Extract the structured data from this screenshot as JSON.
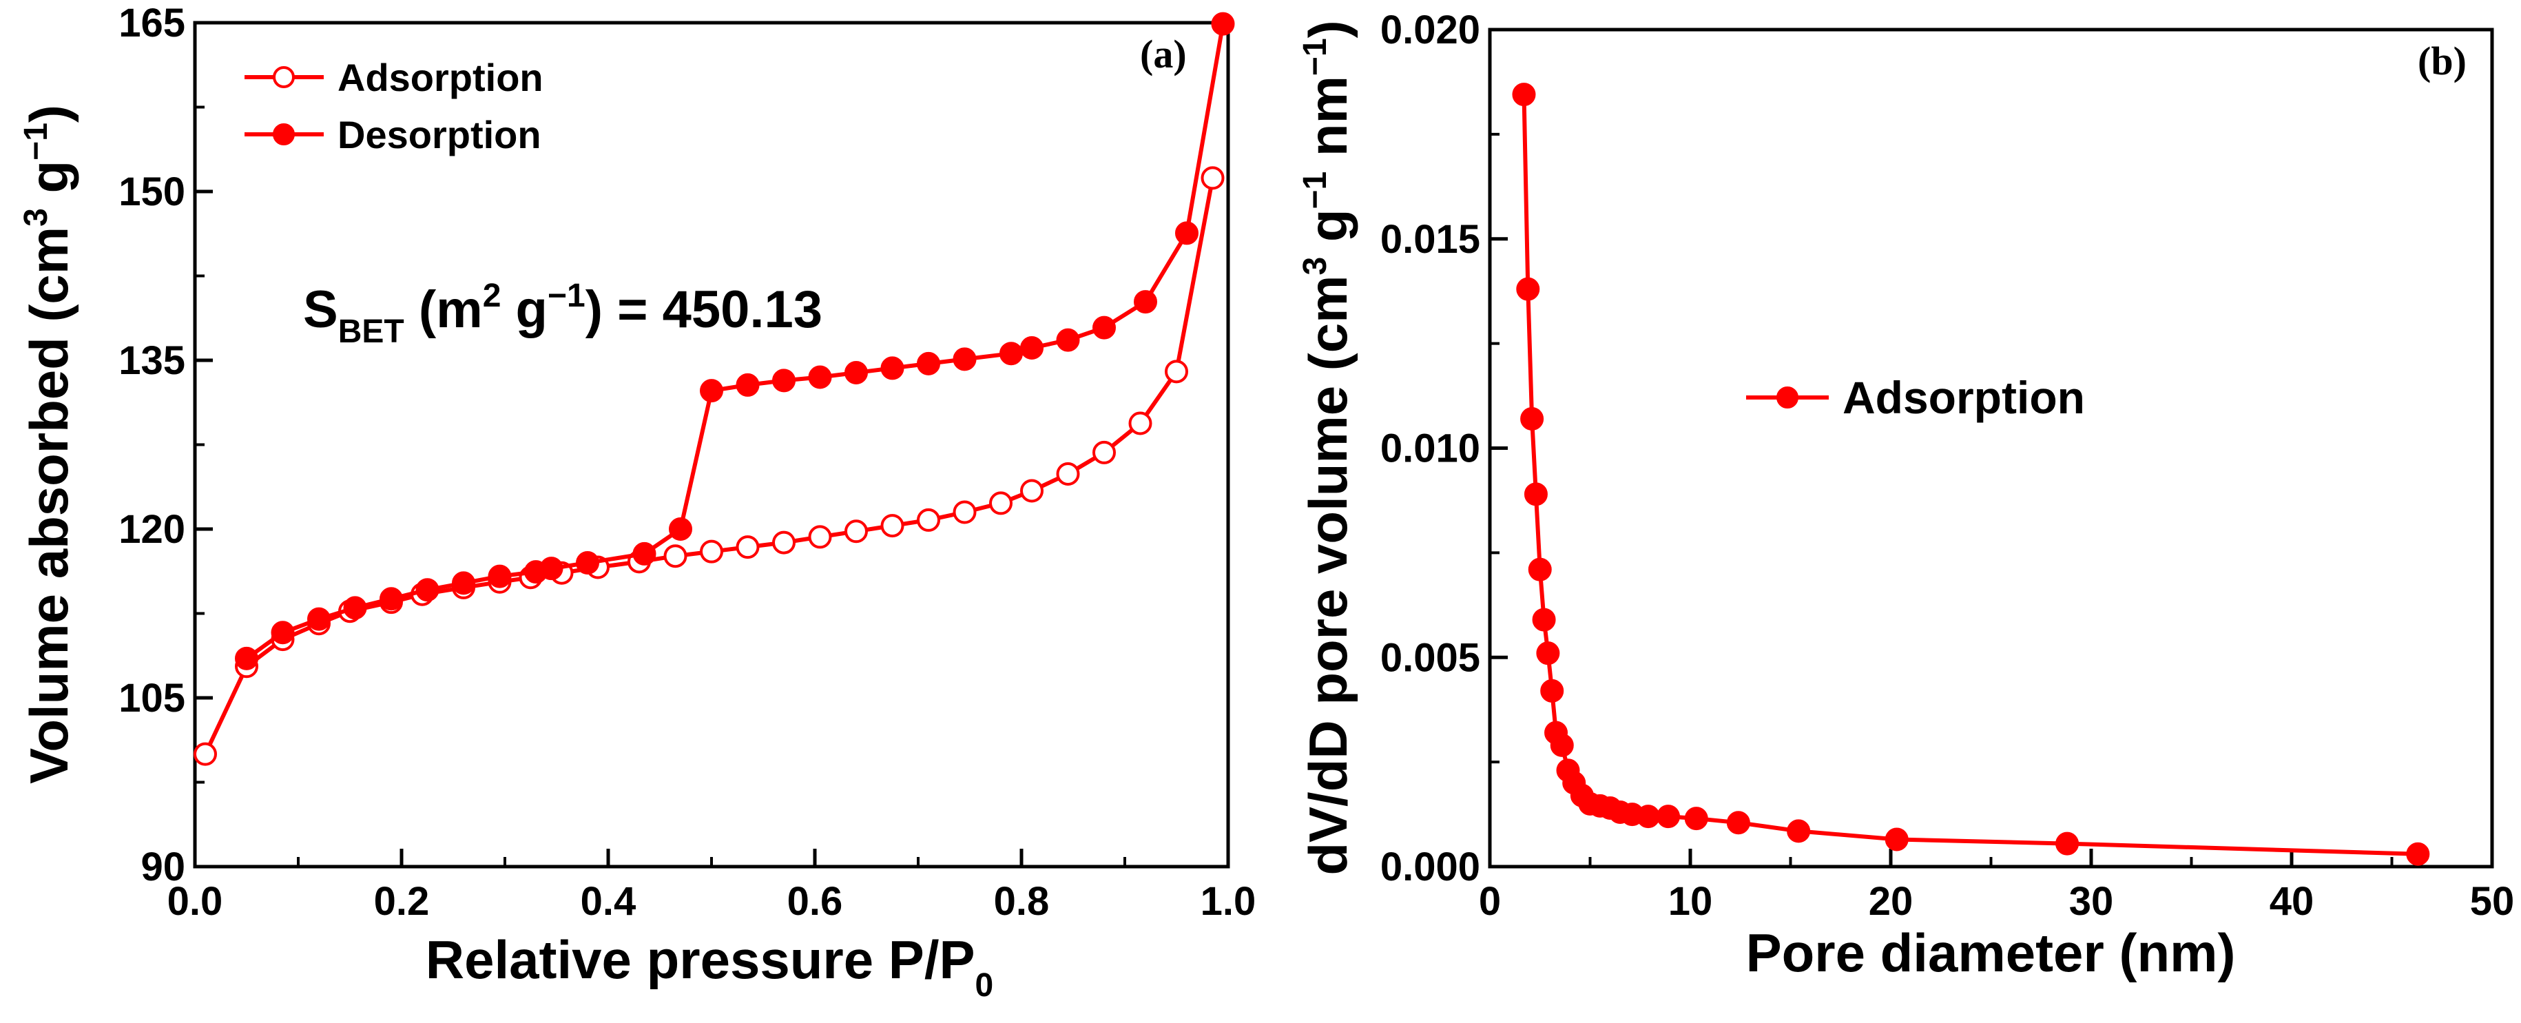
{
  "colors": {
    "series": "#ff0000",
    "axis": "#000000",
    "background": "#ffffff"
  },
  "chart_data": [
    {
      "id": "a",
      "type": "scatter",
      "panel_label": "(a)",
      "xlabel": "Relative pressure P/P",
      "xlabel_sub": "0",
      "ylabel": "Volume absorbed (cm",
      "ylabel_sup1": "3",
      "ylabel_mid": " g",
      "ylabel_sup2": "−1",
      "ylabel_end": ")",
      "xlim": [
        0.0,
        1.0
      ],
      "ylim": [
        90,
        165
      ],
      "xticks": [
        0.0,
        0.2,
        0.4,
        0.6,
        0.8,
        1.0
      ],
      "xtick_labels": [
        "0.0",
        "0.2",
        "0.4",
        "0.6",
        "0.8",
        "1.0"
      ],
      "yticks": [
        90,
        105,
        120,
        135,
        150,
        165
      ],
      "ytick_labels": [
        "90",
        "105",
        "120",
        "135",
        "150",
        "165"
      ],
      "legend_position": "top-left",
      "annotation": {
        "main": "S",
        "sub": "BET",
        "open": " (m",
        "sup1": "2",
        "mid": " g",
        "sup2": "−1",
        "value": ") = 450.13"
      },
      "series": [
        {
          "name": "Adsorption",
          "marker": "open-circle",
          "x": [
            0.01,
            0.05,
            0.085,
            0.12,
            0.15,
            0.19,
            0.22,
            0.26,
            0.295,
            0.325,
            0.355,
            0.39,
            0.43,
            0.465,
            0.5,
            0.535,
            0.57,
            0.605,
            0.64,
            0.675,
            0.71,
            0.745,
            0.78,
            0.81,
            0.845,
            0.88,
            0.915,
            0.95,
            0.985
          ],
          "y": [
            100,
            107.8,
            110.2,
            111.6,
            112.7,
            113.5,
            114.2,
            114.8,
            115.3,
            115.7,
            116.1,
            116.6,
            117.1,
            117.6,
            118.0,
            118.4,
            118.8,
            119.3,
            119.8,
            120.3,
            120.8,
            121.5,
            122.3,
            123.4,
            124.9,
            126.8,
            129.4,
            134.0,
            151.2
          ]
        },
        {
          "name": "Desorption",
          "marker": "filled-circle",
          "x": [
            0.995,
            0.96,
            0.92,
            0.88,
            0.845,
            0.81,
            0.79,
            0.745,
            0.71,
            0.675,
            0.64,
            0.605,
            0.57,
            0.535,
            0.5,
            0.47,
            0.435,
            0.38,
            0.345,
            0.33,
            0.295,
            0.26,
            0.225,
            0.19,
            0.155,
            0.12,
            0.085,
            0.05
          ],
          "y": [
            164.9,
            146.3,
            140.2,
            137.9,
            136.8,
            136.1,
            135.6,
            135.1,
            134.7,
            134.3,
            133.9,
            133.5,
            133.2,
            132.8,
            132.3,
            120.0,
            117.8,
            117.0,
            116.5,
            116.2,
            115.8,
            115.2,
            114.6,
            113.8,
            113.0,
            112.0,
            110.8,
            108.5
          ]
        }
      ]
    },
    {
      "id": "b",
      "type": "line",
      "panel_label": "(b)",
      "xlabel": "Pore diameter (nm)",
      "ylabel": "dV/dD pore volume (cm",
      "ylabel_sup1": "3",
      "ylabel_mid1": " g",
      "ylabel_sup2": "−1",
      "ylabel_mid2": " nm",
      "ylabel_sup3": "−1",
      "ylabel_end": ")",
      "xlim": [
        0,
        50
      ],
      "ylim": [
        0.0,
        0.02
      ],
      "xticks": [
        0,
        10,
        20,
        30,
        40,
        50
      ],
      "xtick_labels": [
        "0",
        "10",
        "20",
        "30",
        "40",
        "50"
      ],
      "yticks": [
        0.0,
        0.005,
        0.01,
        0.015,
        0.02
      ],
      "ytick_labels": [
        "0.000",
        "0.005",
        "0.010",
        "0.015",
        "0.020"
      ],
      "legend_position": "center",
      "series": [
        {
          "name": "Adsorption",
          "marker": "filled-circle",
          "x": [
            1.7,
            1.9,
            2.1,
            2.3,
            2.5,
            2.7,
            2.9,
            3.1,
            3.3,
            3.6,
            3.9,
            4.2,
            4.6,
            5.0,
            5.5,
            6.0,
            6.5,
            7.1,
            7.9,
            8.9,
            10.3,
            12.4,
            15.4,
            20.3,
            28.8,
            46.3
          ],
          "y": [
            0.01845,
            0.0138,
            0.0107,
            0.0089,
            0.0071,
            0.0059,
            0.0051,
            0.0042,
            0.0032,
            0.0029,
            0.0023,
            0.002,
            0.0017,
            0.0015,
            0.00145,
            0.0014,
            0.0013,
            0.00125,
            0.0012,
            0.0012,
            0.00115,
            0.00105,
            0.00085,
            0.00065,
            0.00055,
            0.0003
          ]
        }
      ]
    }
  ]
}
